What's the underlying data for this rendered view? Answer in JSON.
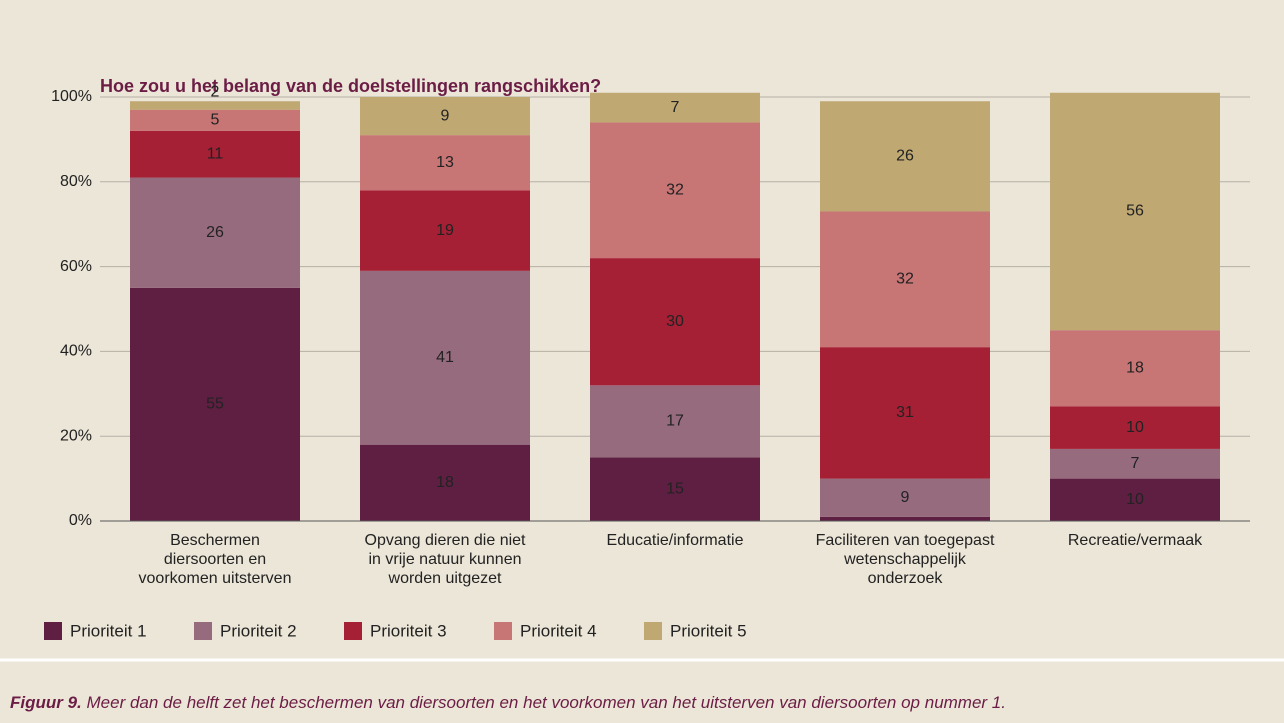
{
  "chart_data": {
    "type": "stacked_bar",
    "title": "Hoe zou u het belang van de doelstellingen rangschikken?",
    "categories": [
      [
        "Beschermen",
        "diersoorten en",
        "voorkomen uitsterven"
      ],
      [
        "Opvang  dieren die niet",
        "in vrije natuur kunnen",
        "worden uitgezet"
      ],
      [
        "Educatie/informatie"
      ],
      [
        "Faciliteren van toegepast",
        "wetenschappelijk",
        "onderzoek"
      ],
      [
        "Recreatie/vermaak"
      ]
    ],
    "series": [
      {
        "name": "Prioriteit 1",
        "color": "#5f1f42",
        "label_color": "#ffffff",
        "values": [
          55,
          18,
          15,
          1,
          10
        ]
      },
      {
        "name": "Prioriteit 2",
        "color": "#966b7e",
        "label_color": "#ffffff",
        "values": [
          26,
          41,
          17,
          9,
          7
        ]
      },
      {
        "name": "Prioriteit 3",
        "color": "#a51f35",
        "label_color": "#ffffff",
        "values": [
          11,
          19,
          30,
          31,
          10
        ]
      },
      {
        "name": "Prioriteit 4",
        "color": "#c87575",
        "label_color": "#ffffff",
        "values": [
          5,
          13,
          32,
          32,
          18
        ]
      },
      {
        "name": "Prioriteit 5",
        "color": "#bfa872",
        "label_color": "#222222",
        "values": [
          2,
          9,
          7,
          26,
          56
        ]
      }
    ],
    "ylim": [
      0,
      100
    ],
    "yticks": [
      {
        "value": 0,
        "label": "0%"
      },
      {
        "value": 20,
        "label": "20%"
      },
      {
        "value": 40,
        "label": "40%"
      },
      {
        "value": 60,
        "label": "60%"
      },
      {
        "value": 80,
        "label": "80%"
      },
      {
        "value": 100,
        "label": "100%"
      }
    ],
    "grid": true
  },
  "caption": {
    "label": "Figuur 9.",
    "text": "Meer dan de helft zet het beschermen van diersoorten en het voorkomen van het uitsterven van diersoorten op nummer 1."
  }
}
